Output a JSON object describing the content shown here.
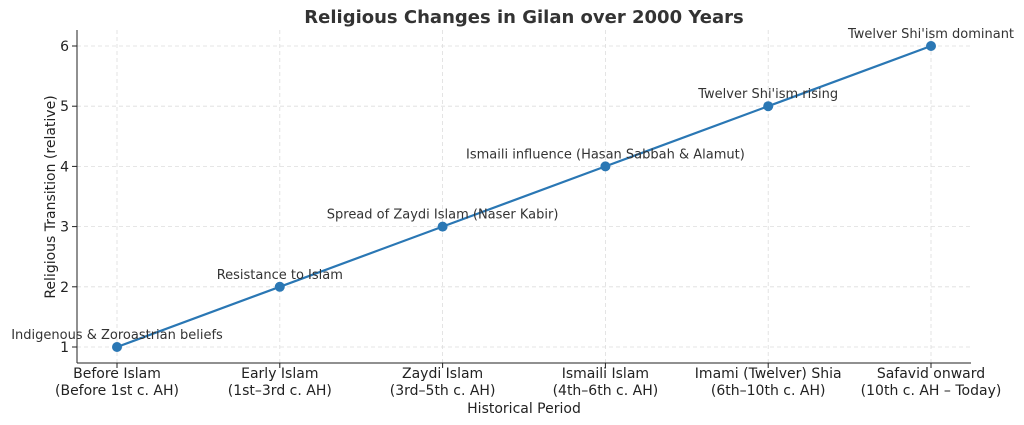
{
  "chart_data": {
    "type": "line",
    "title": "Religious Changes in Gilan over 2000 Years",
    "xlabel": "Historical Period",
    "ylabel": "Religious Transition (relative)",
    "categories": [
      [
        "Before Islam",
        "(Before 1st c. AH)"
      ],
      [
        "Early Islam",
        "(1st–3rd c. AH)"
      ],
      [
        "Zaydi Islam",
        "(3rd–5th c. AH)"
      ],
      [
        "Ismaili Islam",
        "(4th–6th c. AH)"
      ],
      [
        "Imami (Twelver) Shia",
        "(6th–10th c. AH)"
      ],
      [
        "Safavid onward",
        "(10th c. AH – Today)"
      ]
    ],
    "values": [
      1,
      2,
      3,
      4,
      5,
      6
    ],
    "annotations": [
      "Indigenous & Zoroastrian beliefs",
      "Resistance to Islam",
      "Spread of Zaydi Islam (Naser Kabir)",
      "Ismaili influence (Hasan Sabbah & Alamut)",
      "Twelver Shi'ism rising",
      "Twelver Shi'ism dominant"
    ],
    "yticks": [
      1,
      2,
      3,
      4,
      5,
      6
    ],
    "ylim": [
      0.75,
      6.25
    ],
    "grid": true,
    "line_color": "#2a77b4",
    "marker": "circle"
  }
}
